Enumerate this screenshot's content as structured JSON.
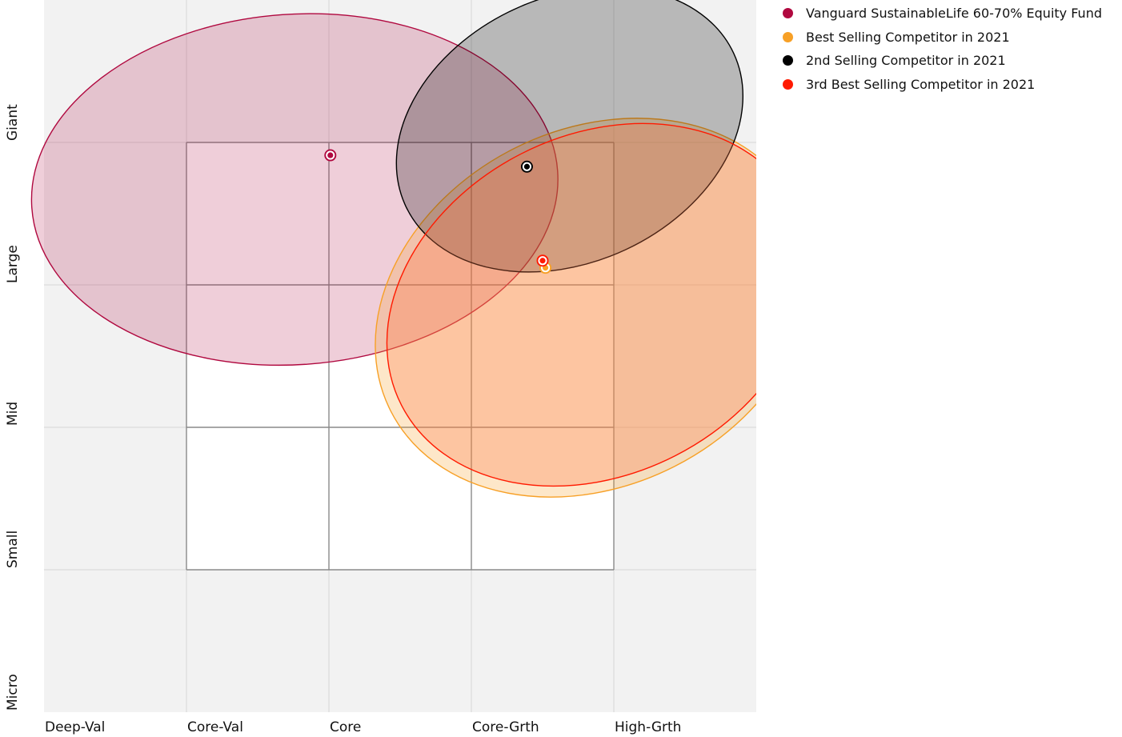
{
  "chart_data": {
    "type": "scatter",
    "x_categories": [
      "Deep-Val",
      "Core-Val",
      "Core",
      "Core-Grth",
      "High-Grth"
    ],
    "y_categories": [
      "Micro",
      "Small",
      "Mid",
      "Large",
      "Giant"
    ],
    "xlim": [
      0,
      5
    ],
    "ylim": [
      0,
      5
    ],
    "grid": true,
    "legend_position": "top-right",
    "style_box": {
      "x": [
        1,
        4
      ],
      "y": [
        1,
        4
      ]
    },
    "series": [
      {
        "name": "Vanguard SustainableLife 60-70% Equity Fund",
        "color": "#b0083f",
        "fill": "rgba(176,8,63,0.2)",
        "x": 2.01,
        "y": 3.91,
        "ellipse": {
          "cx": 1.76,
          "cy": 3.67,
          "rx": 1.85,
          "ry": 1.23,
          "angle": -4
        }
      },
      {
        "name": "Best Selling Competitor in 2021",
        "color": "#f7a026",
        "fill": "rgba(247,160,38,0.25)",
        "x": 3.52,
        "y": 3.12,
        "ellipse": {
          "cx": 3.86,
          "cy": 2.84,
          "rx": 1.6,
          "ry": 1.25,
          "angle": -27
        }
      },
      {
        "name": "2nd Selling Competitor in 2021",
        "color": "#000000",
        "fill": "rgba(0,0,0,0.24)",
        "x": 3.39,
        "y": 3.83,
        "ellipse": {
          "cx": 3.69,
          "cy": 4.09,
          "rx": 1.27,
          "ry": 0.93,
          "angle": -25
        }
      },
      {
        "name": "3rd Best Selling Competitor in 2021",
        "color": "#ff1a00",
        "fill": "rgba(255,120,70,0.3)",
        "x": 3.5,
        "y": 3.17,
        "ellipse": {
          "cx": 3.89,
          "cy": 2.86,
          "rx": 1.55,
          "ry": 1.19,
          "angle": -27
        }
      }
    ]
  }
}
